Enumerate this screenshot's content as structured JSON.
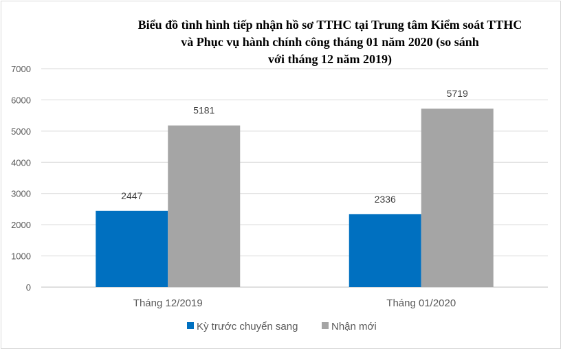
{
  "chart_data": {
    "type": "bar",
    "title_lines": [
      "Biểu đồ tình hình tiếp nhận hồ sơ TTHC tại Trung tâm Kiểm soát TTHC",
      "và Phục vụ hành chính công tháng 01 năm 2020 (so sánh",
      "với tháng 12 năm 2019)"
    ],
    "categories": [
      "Tháng 12/2019",
      "Tháng 01/2020"
    ],
    "series": [
      {
        "name": "Kỳ trước chuyển sang",
        "values": [
          2447,
          2336
        ],
        "color": "#0070c0"
      },
      {
        "name": "Nhận mới",
        "values": [
          5181,
          5719
        ],
        "color": "#a5a5a5"
      }
    ],
    "ylim": [
      0,
      7000
    ],
    "yticks": [
      0,
      1000,
      2000,
      3000,
      4000,
      5000,
      6000,
      7000
    ],
    "grid": true,
    "legend_position": "bottom",
    "xlabel": "",
    "ylabel": ""
  }
}
